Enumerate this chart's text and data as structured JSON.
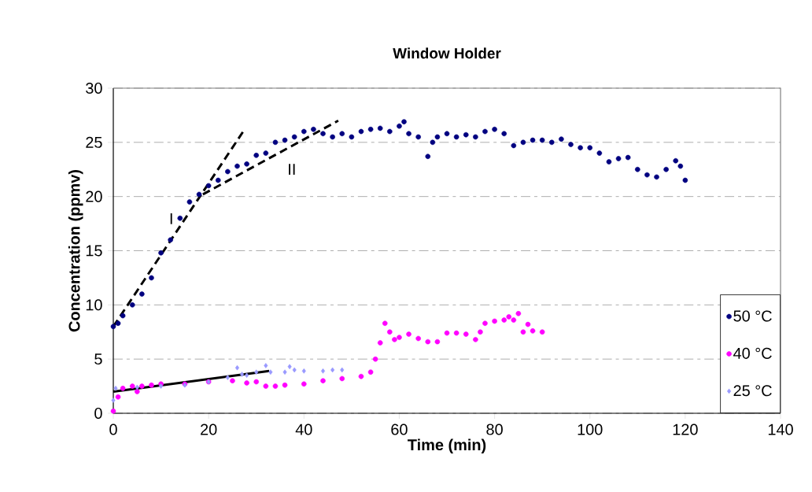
{
  "chart_data": {
    "type": "scatter",
    "title": "Window Holder",
    "xlabel": "Time (min)",
    "ylabel": "Concentration (ppmv)",
    "xlim": [
      0,
      140
    ],
    "ylim": [
      0,
      30
    ],
    "xticks": [
      0,
      20,
      40,
      60,
      80,
      100,
      120,
      140
    ],
    "yticks": [
      0,
      5,
      10,
      15,
      20,
      25,
      30
    ],
    "grid": "y",
    "legend": "bottom right",
    "series": [
      {
        "name": "50 °C",
        "color": "#000080",
        "marker": "circle",
        "x": [
          0,
          1,
          2,
          4,
          6,
          8,
          10,
          12,
          14,
          16,
          18,
          20,
          22,
          24,
          26,
          28,
          30,
          32,
          34,
          36,
          38,
          40,
          42,
          44,
          46,
          48,
          50,
          52,
          54,
          56,
          58,
          60,
          61,
          62,
          64,
          66,
          67,
          68,
          70,
          72,
          74,
          76,
          78,
          80,
          82,
          84,
          86,
          88,
          90,
          92,
          94,
          96,
          98,
          100,
          102,
          104,
          106,
          108,
          110,
          112,
          114,
          116,
          118,
          119,
          120
        ],
        "values": [
          8,
          8.3,
          9,
          10,
          11,
          12.5,
          14.8,
          16,
          18,
          19.5,
          20.2,
          21,
          21.5,
          22.3,
          22.8,
          23,
          23.8,
          24,
          25,
          25.2,
          25.5,
          26,
          26.2,
          25.8,
          25.5,
          25.8,
          25.5,
          26,
          26.2,
          26.3,
          26,
          26.5,
          26.9,
          25.8,
          25.5,
          23.7,
          25,
          25.5,
          25.8,
          25.5,
          25.7,
          25.5,
          26,
          26.2,
          25.8,
          24.7,
          25,
          25.2,
          25.2,
          25,
          25.3,
          24.8,
          24.5,
          24.5,
          24,
          23.2,
          23.5,
          23.6,
          22.5,
          22,
          21.8,
          22.5,
          23.3,
          22.8,
          21.5
        ]
      },
      {
        "name": "40 °C",
        "color": "#ff00ff",
        "marker": "circle",
        "x": [
          0,
          1,
          2,
          4,
          5,
          6,
          8,
          10,
          15,
          20,
          25,
          28,
          30,
          32,
          34,
          36,
          40,
          44,
          48,
          52,
          54,
          55,
          56,
          57,
          58,
          59,
          60,
          62,
          64,
          66,
          68,
          70,
          72,
          74,
          76,
          77,
          78,
          80,
          82,
          83,
          84,
          85,
          86,
          87,
          88,
          90
        ],
        "values": [
          0.2,
          1.5,
          2.3,
          2.5,
          2.0,
          2.5,
          2.6,
          2.7,
          2.7,
          2.9,
          3.0,
          2.8,
          2.9,
          2.5,
          2.5,
          2.6,
          2.7,
          3.0,
          3.2,
          3.4,
          3.8,
          5,
          6.5,
          8.3,
          7.5,
          6.8,
          7.0,
          7.3,
          6.9,
          6.6,
          6.6,
          7.4,
          7.4,
          7.3,
          6.8,
          7.5,
          8.3,
          8.5,
          8.6,
          8.9,
          8.6,
          9.2,
          7.5,
          8.2,
          7.6,
          7.5
        ]
      },
      {
        "name": "25 °C",
        "color": "#9999ff",
        "marker": "diamond",
        "x": [
          0,
          0.5,
          5,
          10,
          15,
          20,
          24,
          26,
          27,
          28,
          30,
          32,
          33,
          36,
          37,
          38,
          40,
          44,
          46,
          48
        ],
        "values": [
          1.2,
          2.3,
          2.4,
          2.5,
          2.6,
          2.9,
          3.3,
          4.2,
          3.6,
          3.5,
          3.8,
          4.4,
          3.8,
          3.8,
          4.3,
          4.0,
          3.9,
          3.9,
          4.0,
          4.0
        ]
      },
      {
        "type": "line",
        "name": "I",
        "color": "#000000",
        "line_style": "dashed",
        "marker": "none",
        "x": [
          0,
          27.4
        ],
        "values": [
          8,
          26.1
        ]
      },
      {
        "type": "line",
        "name": "II",
        "color": "#000000",
        "line_style": "dashed",
        "marker": "none",
        "x": [
          18.8,
          47.2
        ],
        "values": [
          20.2,
          27.0
        ]
      },
      {
        "type": "line",
        "color": "#000000",
        "line_style": "solid",
        "marker": "none",
        "x": [
          0,
          32.7
        ],
        "values": [
          2.0,
          3.9
        ]
      }
    ]
  }
}
